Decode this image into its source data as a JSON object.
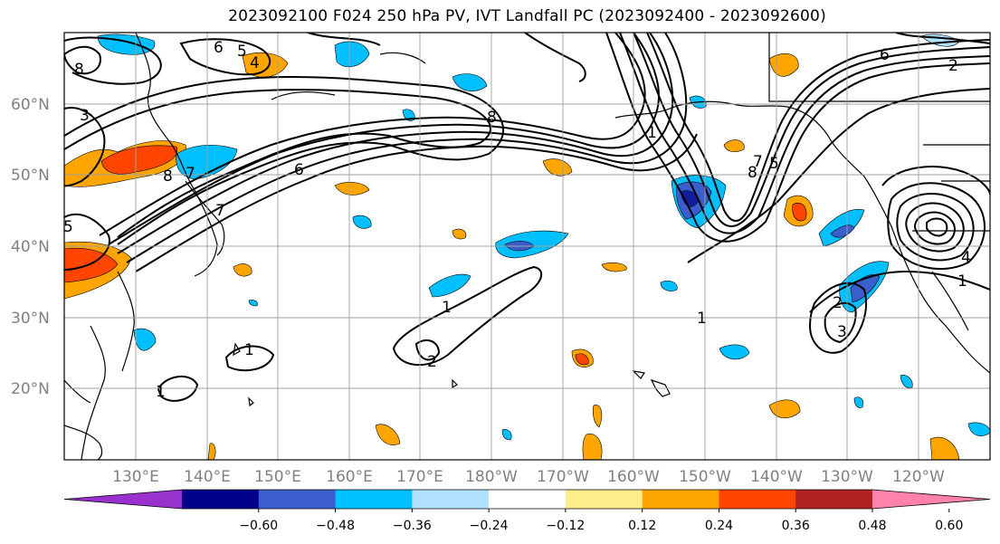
{
  "title": "2023092100 F024 250 hPa PV, IVT Landfall PC (2023092400 - 2023092600)",
  "lat_labels": [
    "60°N",
    "50°N",
    "40°N",
    "30°N",
    "20°N"
  ],
  "lon_labels": [
    "130°E",
    "140°E",
    "150°E",
    "160°E",
    "170°E",
    "180°W",
    "170°W",
    "160°W",
    "150°W",
    "140°W",
    "130°W",
    "120°W"
  ],
  "colorbar": {
    "colors": [
      "#9932cc",
      "#00008b",
      "#3a5fcd",
      "#00bfff",
      "#b0e2ff",
      "#ffffff",
      "#ffec8b",
      "#ffa500",
      "#ff4500",
      "#b22222",
      "#ff82ab"
    ],
    "ticks": [
      "−0.60",
      "−0.48",
      "−0.36",
      "−0.24",
      "−0.12",
      "0.12",
      "0.24",
      "0.36",
      "0.48",
      "0.60"
    ]
  },
  "contour_labels": [
    "6",
    "4",
    "5",
    "8",
    "3",
    "7",
    "8",
    "6",
    "7",
    "5",
    "1",
    "2",
    "1",
    "1",
    "8",
    "1",
    "7",
    "2",
    "6",
    "5",
    "4",
    "2",
    "3",
    "1",
    "1",
    "8"
  ]
}
